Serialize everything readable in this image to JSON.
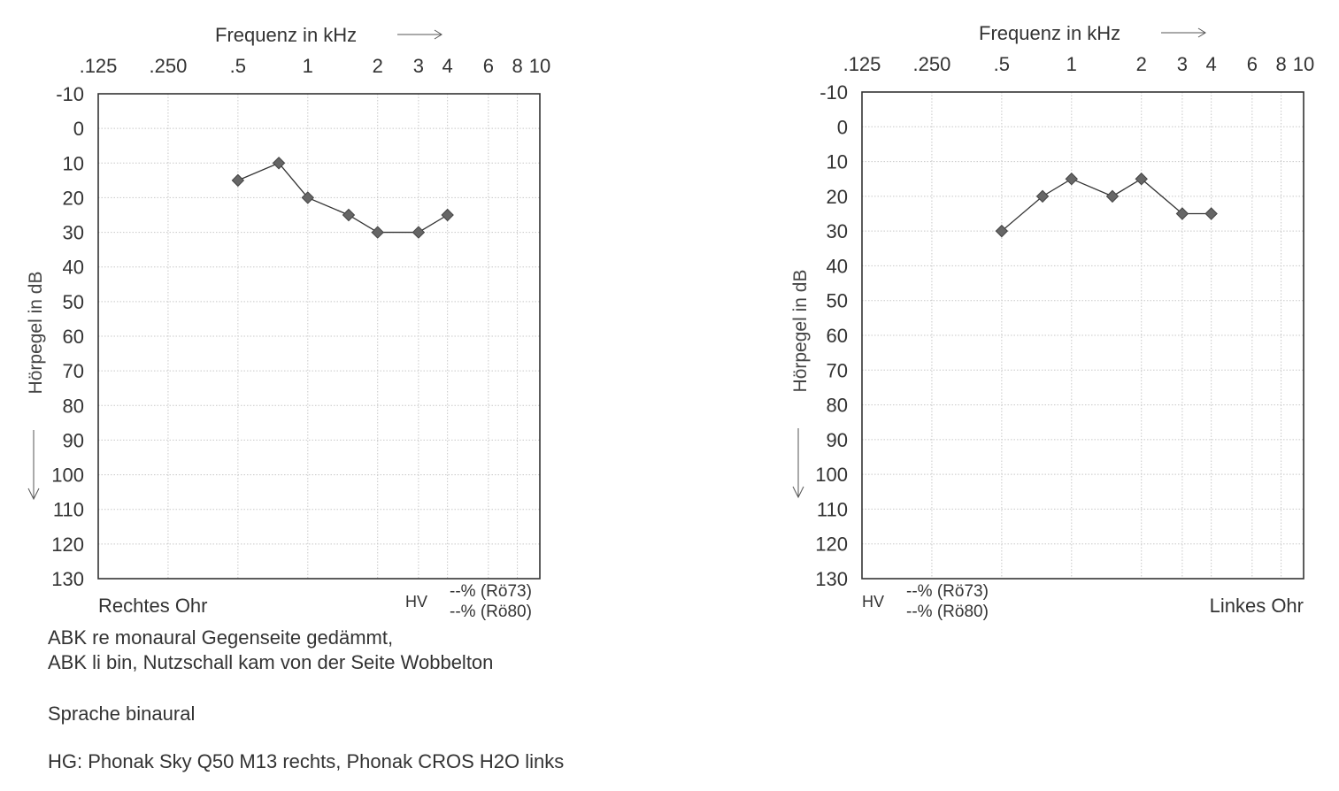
{
  "chart_data": [
    {
      "type": "line",
      "title": "Frequenz in kHz",
      "arrow_glyph": "→",
      "ylabel": "Hörpegel in dB",
      "x_scale": "log",
      "xlim": [
        0.125,
        10
      ],
      "ylim": [
        -10,
        130
      ],
      "y_inverted": true,
      "grid": true,
      "x_ticks": [
        {
          "value": 0.125,
          "label": ".125"
        },
        {
          "value": 0.25,
          "label": ".250"
        },
        {
          "value": 0.5,
          "label": ".5"
        },
        {
          "value": 1,
          "label": "1"
        },
        {
          "value": 2,
          "label": "2"
        },
        {
          "value": 3,
          "label": "3"
        },
        {
          "value": 4,
          "label": "4"
        },
        {
          "value": 6,
          "label": "6"
        },
        {
          "value": 8,
          "label": "8"
        },
        {
          "value": 10,
          "label": "10"
        }
      ],
      "y_ticks": [
        -10,
        0,
        10,
        20,
        30,
        40,
        50,
        60,
        70,
        80,
        90,
        100,
        110,
        120,
        130
      ],
      "series": [
        {
          "x": [
            0.5,
            0.75,
            1,
            1.5,
            2,
            3,
            4
          ],
          "y": [
            15,
            10,
            20,
            25,
            30,
            30,
            25
          ],
          "marker": "diamond"
        }
      ],
      "ear_label": "Rechtes Ohr",
      "hv_label": "HV",
      "score_lines": [
        "--% (Rö73)",
        "--% (Rö80)"
      ]
    },
    {
      "type": "line",
      "title": "Frequenz in kHz",
      "arrow_glyph": "→",
      "ylabel": "Hörpegel in dB",
      "x_scale": "log",
      "xlim": [
        0.125,
        10
      ],
      "ylim": [
        -10,
        130
      ],
      "y_inverted": true,
      "grid": true,
      "x_ticks": [
        {
          "value": 0.125,
          "label": ".125"
        },
        {
          "value": 0.25,
          "label": ".250"
        },
        {
          "value": 0.5,
          "label": ".5"
        },
        {
          "value": 1,
          "label": "1"
        },
        {
          "value": 2,
          "label": "2"
        },
        {
          "value": 3,
          "label": "3"
        },
        {
          "value": 4,
          "label": "4"
        },
        {
          "value": 6,
          "label": "6"
        },
        {
          "value": 8,
          "label": "8"
        },
        {
          "value": 10,
          "label": "10"
        }
      ],
      "y_ticks": [
        -10,
        0,
        10,
        20,
        30,
        40,
        50,
        60,
        70,
        80,
        90,
        100,
        110,
        120,
        130
      ],
      "series": [
        {
          "x": [
            0.5,
            0.75,
            1,
            1.5,
            2,
            3,
            4
          ],
          "y": [
            30,
            20,
            15,
            20,
            15,
            25,
            25
          ],
          "marker": "diamond"
        }
      ],
      "ear_label": "Linkes Ohr",
      "hv_label": "HV",
      "score_lines": [
        "--% (Rö73)",
        "--% (Rö80)"
      ]
    }
  ],
  "notes": {
    "line1": "ABK re monaural Gegenseite gedämmt,",
    "line2": "ABK li bin, Nutzschall kam von der Seite Wobbelton",
    "line3": "Sprache binaural",
    "line4": "HG: Phonak Sky Q50 M13 rechts, Phonak CROS H2O links"
  },
  "colors": {
    "line": "#333333",
    "marker": "#666666",
    "grid": "#c8c8c8",
    "frame": "#333333"
  }
}
